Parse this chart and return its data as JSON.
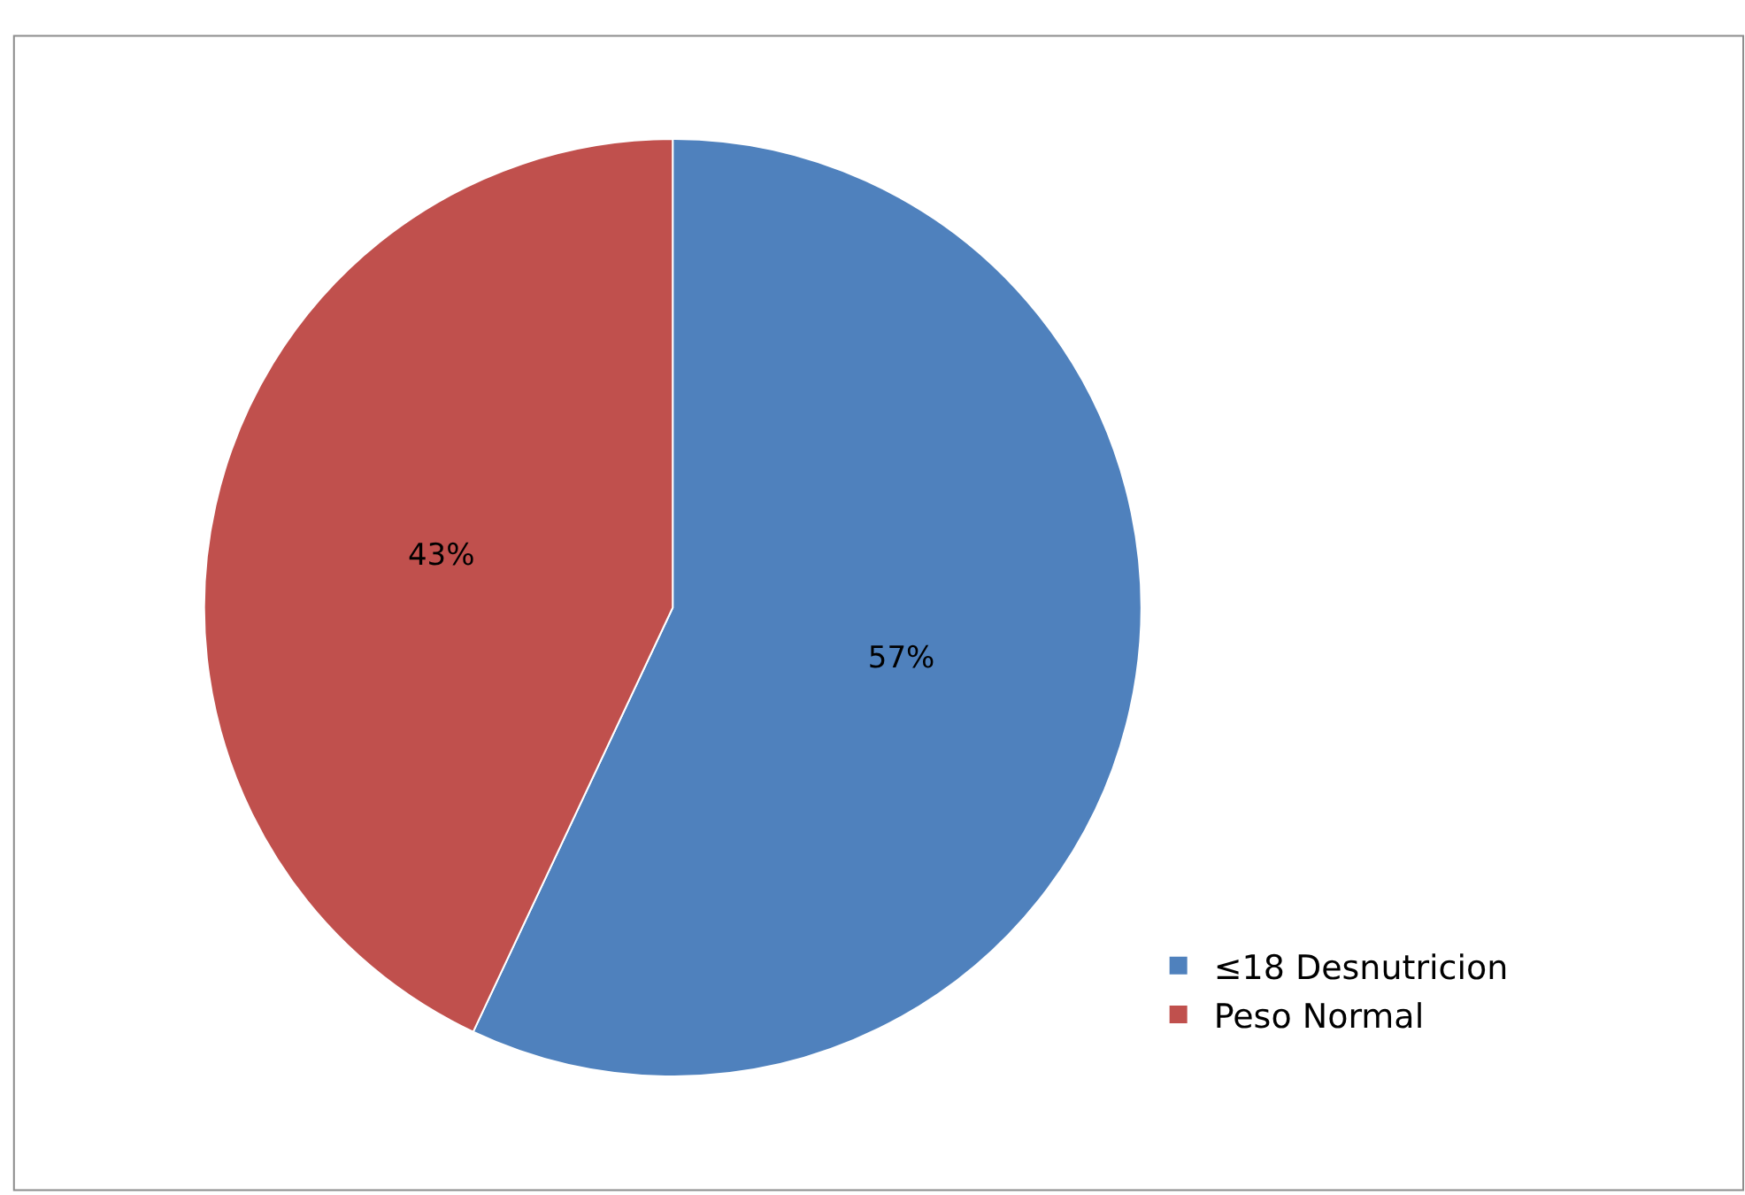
{
  "chart_data": {
    "type": "pie",
    "categories": [
      "≤18 Desnutricion",
      "Peso Normal"
    ],
    "values": [
      57,
      43
    ],
    "colors": [
      "#4f81bd",
      "#c0504d"
    ],
    "value_labels": [
      "57%",
      "43%"
    ],
    "legend": "bottom right"
  }
}
